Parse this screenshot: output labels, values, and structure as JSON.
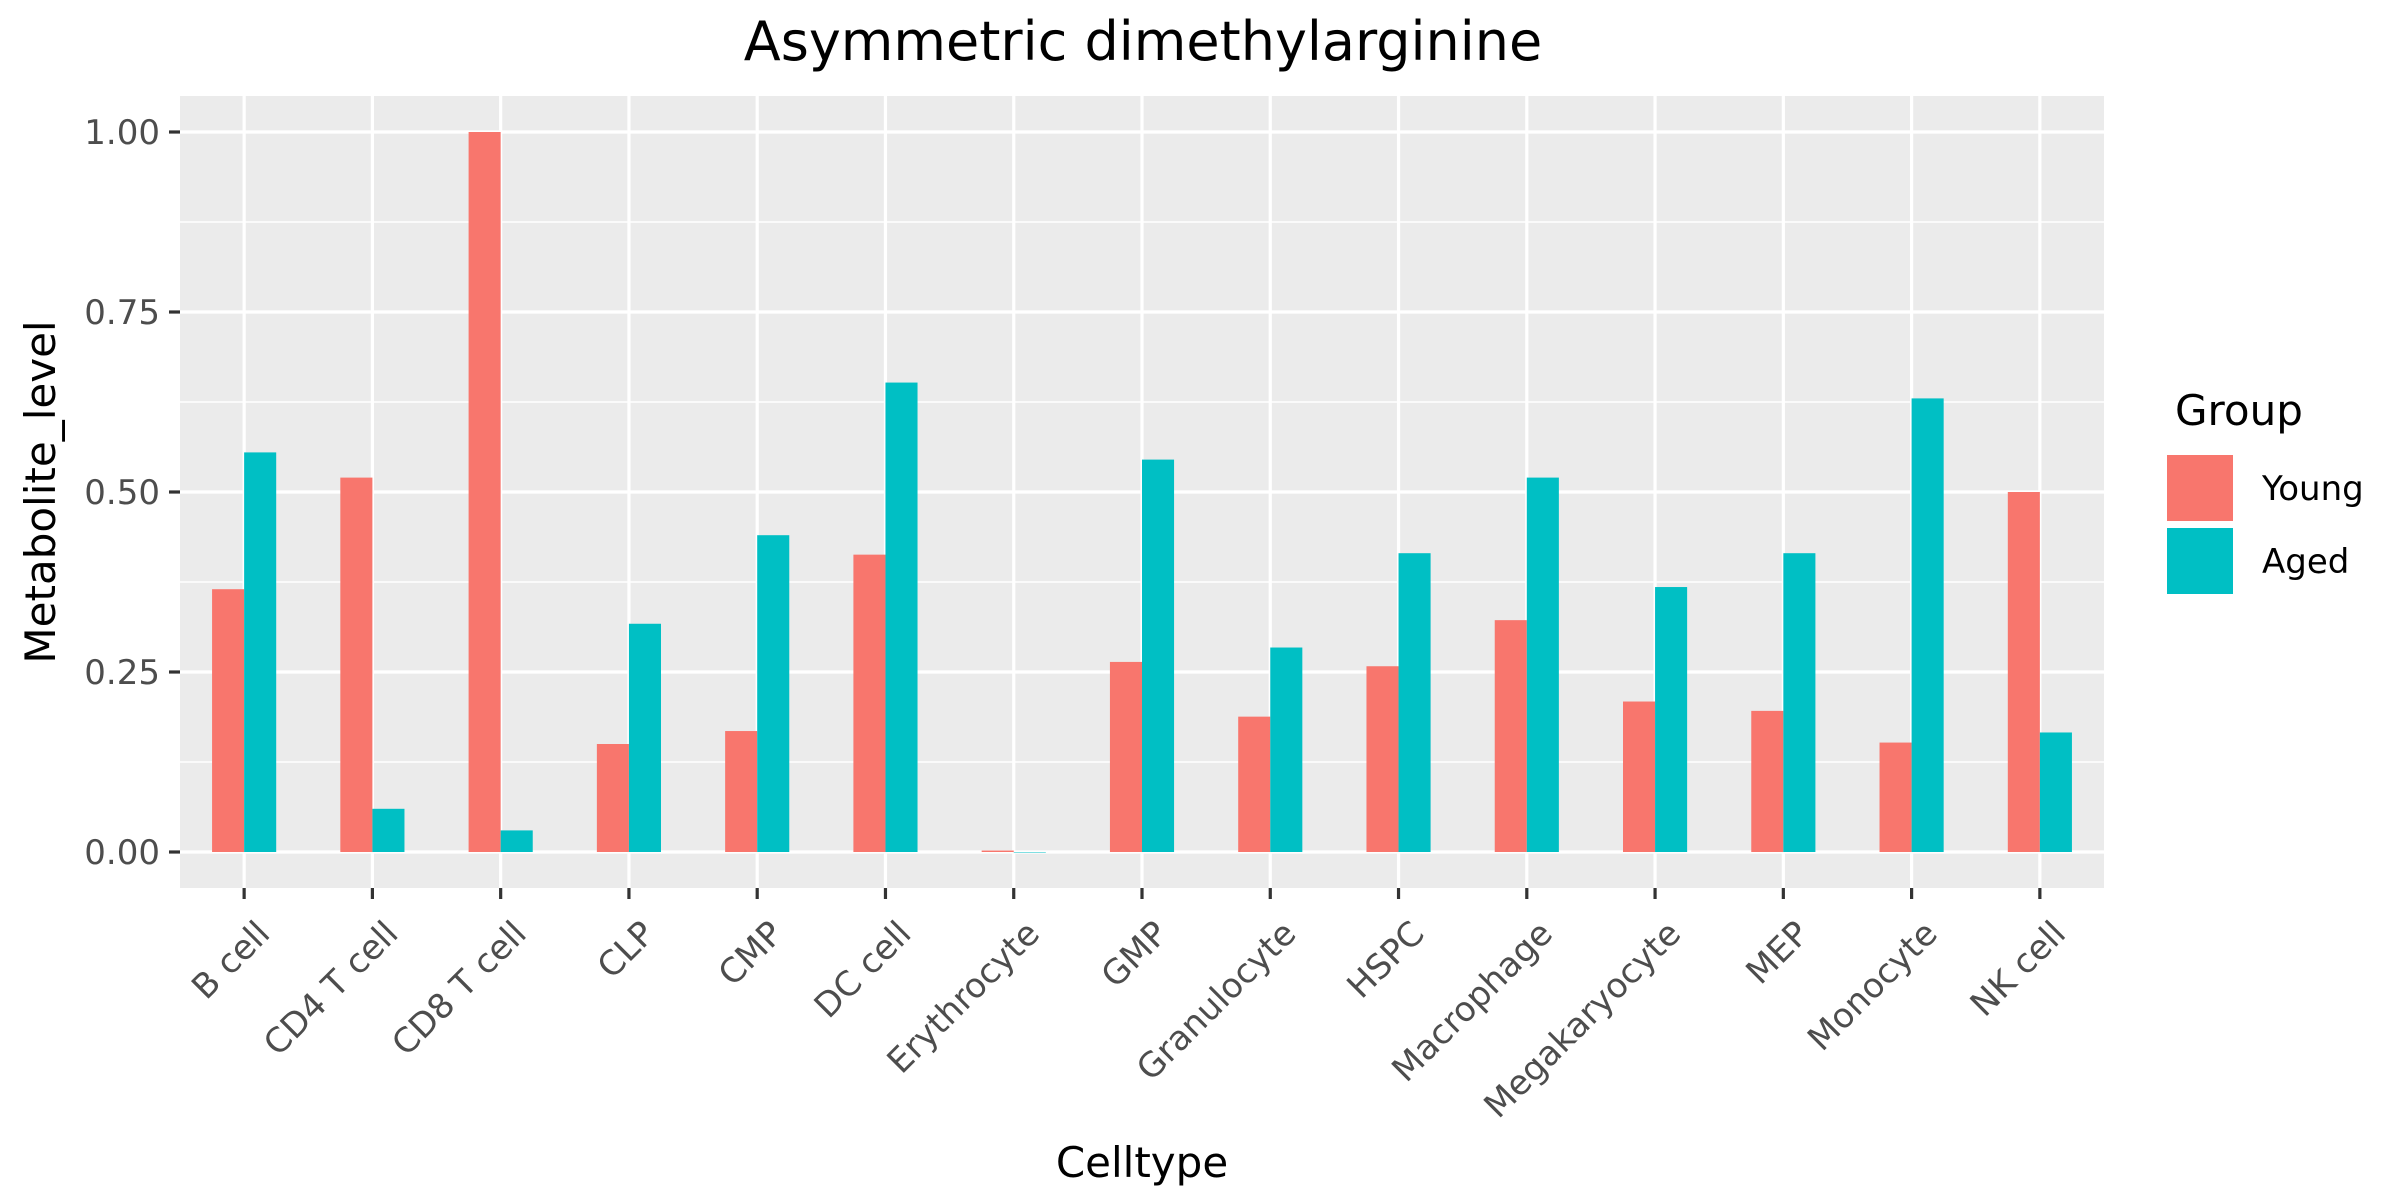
{
  "chart_data": {
    "type": "bar",
    "title": "Asymmetric dimethylarginine",
    "xlabel": "Celltype",
    "ylabel": "Metabolite_level",
    "ylim": [
      -0.05,
      1.05
    ],
    "yticks": [
      0.0,
      0.25,
      0.5,
      0.75,
      1.0
    ],
    "ytick_labels": [
      "0.00",
      "0.25",
      "0.50",
      "0.75",
      "1.00"
    ],
    "grid": true,
    "legend_position": "right",
    "legend_title": "Group",
    "categories": [
      "B cell",
      "CD4 T cell",
      "CD8 T cell",
      "CLP",
      "CMP",
      "DC cell",
      "Erythrocyte",
      "GMP",
      "Granulocyte",
      "HSPC",
      "Macrophage",
      "Megakaryocyte",
      "MEP",
      "Monocyte",
      "NK cell"
    ],
    "series": [
      {
        "name": "Young",
        "color": "#F8766D",
        "values": [
          0.365,
          0.52,
          1.0,
          0.15,
          0.168,
          0.413,
          0.002,
          0.264,
          0.188,
          0.258,
          0.322,
          0.209,
          0.196,
          0.152,
          0.5
        ]
      },
      {
        "name": "Aged",
        "color": "#00BFC4",
        "values": [
          0.555,
          0.06,
          0.03,
          0.317,
          0.44,
          0.652,
          0.0,
          0.545,
          0.284,
          0.415,
          0.52,
          0.368,
          0.415,
          0.63,
          0.166
        ]
      }
    ]
  }
}
